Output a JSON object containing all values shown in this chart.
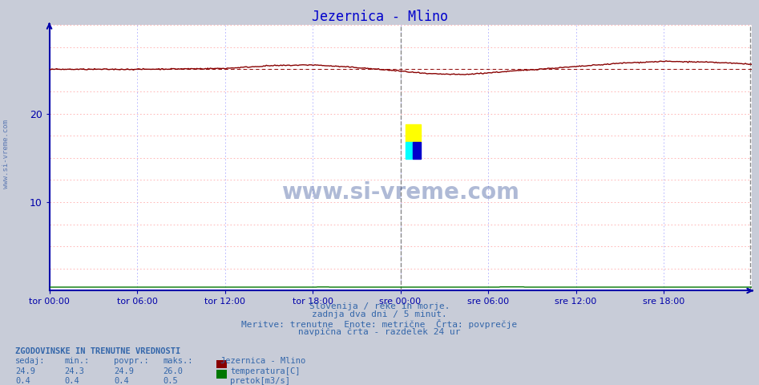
{
  "title": "Jezernica - Mlino",
  "title_color": "#0000cc",
  "bg_color": "#c8ccd8",
  "plot_bg_color": "#ffffff",
  "x_labels": [
    "tor 00:00",
    "tor 06:00",
    "tor 12:00",
    "tor 18:00",
    "sre 00:00",
    "sre 06:00",
    "sre 12:00",
    "sre 18:00"
  ],
  "x_ticks_pos": [
    0,
    72,
    144,
    216,
    288,
    360,
    432,
    504
  ],
  "total_points": 577,
  "ylim": [
    0,
    30
  ],
  "yticks": [
    10,
    20
  ],
  "temp_color": "#880000",
  "flow_color": "#007700",
  "avg_line_color": "#880000",
  "grid_h_color": "#ffaaaa",
  "grid_v_color": "#aaaaff",
  "vline_color": "#888888",
  "vline_pos": 288,
  "axis_color": "#0000aa",
  "text_color": "#3366aa",
  "subtitle1": "Slovenija / reke in morje.",
  "subtitle2": "zadnja dva dni / 5 minut.",
  "subtitle3": "Meritve: trenutne  Enote: metrične  Črta: povprečje",
  "subtitle4": "navpična črta - razdelek 24 ur",
  "legend_title": "Jezernica - Mlino",
  "legend_temp": "temperatura[C]",
  "legend_flow": "pretok[m3/s]",
  "stats_header": "ZGODOVINSKE IN TRENUTNE VREDNOSTI",
  "stats_col1": "sedaj:",
  "stats_col2": "min.:",
  "stats_col3": "povpr.:",
  "stats_col4": "maks.:",
  "stats_temp_vals": [
    24.9,
    24.3,
    24.9,
    26.0
  ],
  "stats_flow_vals": [
    0.4,
    0.4,
    0.4,
    0.5
  ],
  "watermark": "www.si-vreme.com"
}
